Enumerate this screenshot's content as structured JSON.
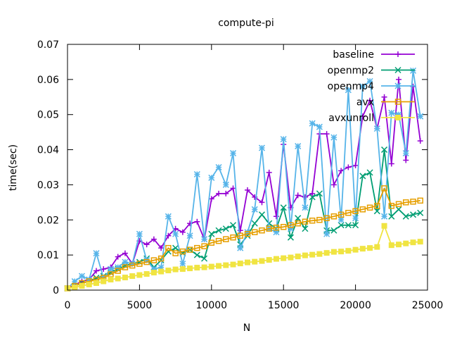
{
  "chart_data": {
    "type": "line",
    "title": "compute-pi",
    "xlabel": "N",
    "ylabel": "time(sec)",
    "xlim": [
      0,
      25000
    ],
    "ylim": [
      0,
      0.07
    ],
    "xticks": [
      0,
      5000,
      10000,
      15000,
      20000,
      25000
    ],
    "yticks": [
      0,
      0.01,
      0.02,
      0.03,
      0.04,
      0.05,
      0.06,
      0.07
    ],
    "xtick_labels": [
      "0",
      "5000",
      "10000",
      "15000",
      "20000",
      "25000"
    ],
    "ytick_labels": [
      "0",
      "0.01",
      "0.02",
      "0.03",
      "0.04",
      "0.05",
      "0.06",
      "0.07"
    ],
    "grid": false,
    "legend": "top-right",
    "x": [
      0,
      500,
      1000,
      1500,
      2000,
      2500,
      3000,
      3500,
      4000,
      4500,
      5000,
      5500,
      6000,
      6500,
      7000,
      7500,
      8000,
      8500,
      9000,
      9500,
      10000,
      10500,
      11000,
      11500,
      12000,
      12500,
      13000,
      13500,
      14000,
      14500,
      15000,
      15500,
      16000,
      16500,
      17000,
      17500,
      18000,
      18500,
      19000,
      19500,
      20000,
      20500,
      21000,
      21500,
      22000,
      22500,
      23000,
      23500,
      24000,
      24500
    ],
    "series": [
      {
        "name": "baseline",
        "color": "#9400d3",
        "marker": "plus",
        "values": [
          0.0005,
          0.0015,
          0.0025,
          0.003,
          0.0055,
          0.006,
          0.0065,
          0.0095,
          0.0105,
          0.0075,
          0.014,
          0.013,
          0.0145,
          0.012,
          0.0155,
          0.0175,
          0.0165,
          0.019,
          0.0195,
          0.0145,
          0.026,
          0.0275,
          0.0275,
          0.029,
          0.017,
          0.0285,
          0.0265,
          0.025,
          0.0335,
          0.021,
          0.0415,
          0.0235,
          0.027,
          0.0265,
          0.0275,
          0.0445,
          0.0445,
          0.03,
          0.034,
          0.035,
          0.0355,
          0.0495,
          0.054,
          0.046,
          0.055,
          0.036,
          0.06,
          0.037,
          0.058,
          0.0425
        ]
      },
      {
        "name": "openmp2",
        "color": "#009e73",
        "marker": "cross",
        "values": [
          0.0005,
          0.0012,
          0.002,
          0.0025,
          0.0035,
          0.004,
          0.005,
          0.006,
          0.007,
          0.0075,
          0.008,
          0.009,
          0.0065,
          0.0085,
          0.011,
          0.012,
          0.0105,
          0.0115,
          0.01,
          0.009,
          0.016,
          0.017,
          0.0175,
          0.0185,
          0.013,
          0.0155,
          0.019,
          0.0215,
          0.019,
          0.0175,
          0.0235,
          0.015,
          0.0205,
          0.0175,
          0.0265,
          0.0275,
          0.017,
          0.017,
          0.0185,
          0.0185,
          0.0185,
          0.0325,
          0.0335,
          0.0225,
          0.04,
          0.021,
          0.023,
          0.021,
          0.0215,
          0.022
        ]
      },
      {
        "name": "openmp4",
        "color": "#56b4e9",
        "marker": "boxcross",
        "values": [
          0.0005,
          0.0025,
          0.004,
          0.003,
          0.0105,
          0.0035,
          0.006,
          0.0065,
          0.008,
          0.0075,
          0.016,
          0.0085,
          0.006,
          0.0065,
          0.021,
          0.016,
          0.0075,
          0.0155,
          0.033,
          0.0145,
          0.032,
          0.035,
          0.03,
          0.039,
          0.012,
          0.0165,
          0.023,
          0.0405,
          0.0175,
          0.0165,
          0.043,
          0.0175,
          0.041,
          0.0235,
          0.0475,
          0.0465,
          0.016,
          0.0435,
          0.02,
          0.057,
          0.0205,
          0.058,
          0.0595,
          0.046,
          0.021,
          0.0505,
          0.05,
          0.039,
          0.0625,
          0.0495
        ]
      },
      {
        "name": "avx",
        "color": "#e69f00",
        "marker": "box",
        "values": [
          0.0005,
          0.0012,
          0.002,
          0.0025,
          0.003,
          0.0035,
          0.0045,
          0.0055,
          0.0065,
          0.007,
          0.0075,
          0.008,
          0.0085,
          0.009,
          0.012,
          0.0105,
          0.011,
          0.0115,
          0.012,
          0.0125,
          0.0135,
          0.014,
          0.0145,
          0.015,
          0.0155,
          0.016,
          0.0165,
          0.017,
          0.0175,
          0.0178,
          0.018,
          0.0185,
          0.019,
          0.0195,
          0.0198,
          0.02,
          0.0205,
          0.021,
          0.0215,
          0.022,
          0.0225,
          0.023,
          0.0235,
          0.024,
          0.029,
          0.024,
          0.0245,
          0.025,
          0.0252,
          0.0255
        ]
      },
      {
        "name": "avxunroll",
        "color": "#f0e442",
        "marker": "filledbox",
        "values": [
          0.0005,
          0.0008,
          0.0012,
          0.0016,
          0.002,
          0.0025,
          0.003,
          0.0033,
          0.0036,
          0.004,
          0.0043,
          0.0046,
          0.005,
          0.0053,
          0.0056,
          0.0059,
          0.006,
          0.0062,
          0.0064,
          0.0065,
          0.0067,
          0.0069,
          0.0071,
          0.0073,
          0.0076,
          0.0079,
          0.0081,
          0.0083,
          0.0086,
          0.0089,
          0.0091,
          0.0093,
          0.0096,
          0.0099,
          0.0101,
          0.0103,
          0.0106,
          0.0109,
          0.011,
          0.0112,
          0.0115,
          0.0118,
          0.012,
          0.0123,
          0.0183,
          0.0128,
          0.013,
          0.0133,
          0.0136,
          0.0138
        ]
      }
    ]
  }
}
